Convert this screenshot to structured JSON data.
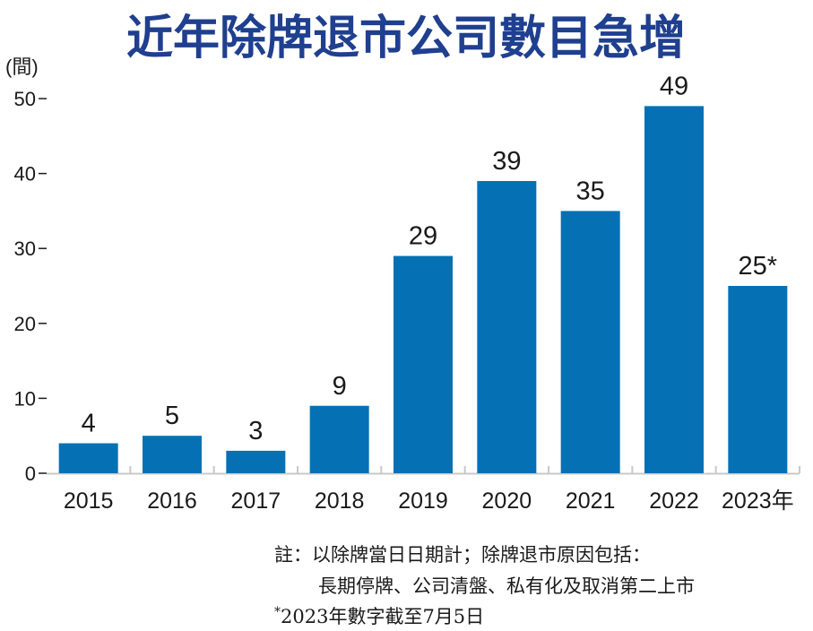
{
  "colors": {
    "title": "#1f3f8f",
    "bar": "#0571b4",
    "text": "#1a1a1a",
    "axis": "#c8c8c8"
  },
  "chart_data": {
    "type": "bar",
    "title": "近年除牌退市公司數目急增",
    "ylabel": "(間)",
    "xlabel": "",
    "categories": [
      "2015",
      "2016",
      "2017",
      "2018",
      "2019",
      "2020",
      "2021",
      "2022",
      "2023年"
    ],
    "values": [
      4,
      5,
      3,
      9,
      29,
      39,
      35,
      49,
      25
    ],
    "value_labels": [
      "4",
      "5",
      "3",
      "9",
      "29",
      "39",
      "35",
      "49",
      "25*"
    ],
    "ylim": [
      0,
      50
    ],
    "yticks": [
      "0",
      "10",
      "20",
      "30",
      "40",
      "50"
    ],
    "grid": false
  },
  "notes": {
    "line1": "註：以除牌當日日期計；除牌退市原因包括：",
    "line2": "長期停牌、公司清盤、私有化及取消第二上市",
    "star": "*",
    "line3": "2023年數字截至7月5日"
  }
}
